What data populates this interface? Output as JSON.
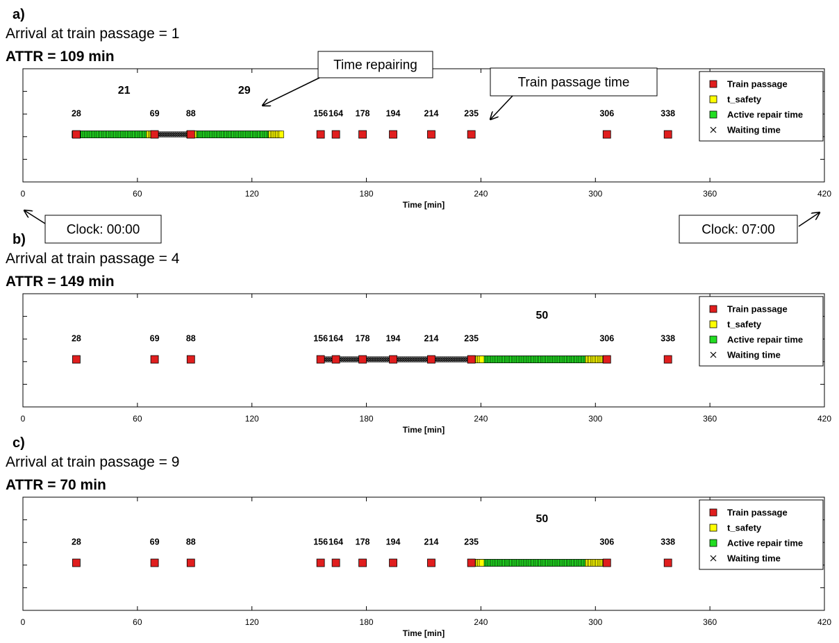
{
  "colors": {
    "train": "#e01e1e",
    "safety": "#ffff00",
    "repair": "#22dd22",
    "waiting": "#000000"
  },
  "legend": {
    "train": "Train passage",
    "safety": "t_safety",
    "repair": "Active repair time",
    "waiting": "Waiting time"
  },
  "annotations": {
    "time_repairing": "Time repairing",
    "train_passage_time": "Train passage time",
    "clock_start": "Clock: 00:00",
    "clock_end": "Clock: 07:00"
  },
  "chart_data": [
    {
      "type": "scatter",
      "panel_label": "a)",
      "subtitle": "Arrival at train passage = 1",
      "title": "ATTR = 109 min",
      "xlabel": "Time [min]",
      "xlim": [
        0,
        420
      ],
      "xticks": [
        0,
        60,
        120,
        180,
        240,
        300,
        360,
        420
      ],
      "train_passages": [
        28,
        69,
        88,
        156,
        164,
        178,
        194,
        214,
        235,
        306,
        338
      ],
      "train_labels": [
        "28",
        "69",
        "88",
        "156",
        "164",
        "178",
        "194",
        "214",
        "235",
        "306",
        "338"
      ],
      "segments": [
        {
          "kind": "safety",
          "start": 27,
          "end": 29
        },
        {
          "kind": "repair",
          "start": 29,
          "end": 66
        },
        {
          "kind": "safety",
          "start": 66,
          "end": 69
        },
        {
          "kind": "waiting",
          "start": 69,
          "end": 87
        },
        {
          "kind": "safety",
          "start": 87,
          "end": 90
        },
        {
          "kind": "repair",
          "start": 90,
          "end": 130
        },
        {
          "kind": "safety",
          "start": 130,
          "end": 136
        }
      ],
      "value_labels": [
        {
          "text": "21",
          "x": 53
        },
        {
          "text": "29",
          "x": 116
        }
      ]
    },
    {
      "type": "scatter",
      "panel_label": "b)",
      "subtitle": "Arrival at train passage = 4",
      "title": "ATTR = 149 min",
      "xlabel": "Time [min]",
      "xlim": [
        0,
        420
      ],
      "xticks": [
        0,
        60,
        120,
        180,
        240,
        300,
        360,
        420
      ],
      "train_passages": [
        28,
        69,
        88,
        156,
        164,
        178,
        194,
        214,
        235,
        306,
        338
      ],
      "train_labels": [
        "28",
        "69",
        "88",
        "156",
        "164",
        "178",
        "194",
        "214",
        "235",
        "306",
        "338"
      ],
      "segments": [
        {
          "kind": "waiting",
          "start": 156,
          "end": 235
        },
        {
          "kind": "safety",
          "start": 235,
          "end": 241
        },
        {
          "kind": "repair",
          "start": 241,
          "end": 296
        },
        {
          "kind": "safety",
          "start": 296,
          "end": 306
        }
      ],
      "value_labels": [
        {
          "text": "50",
          "x": 272
        }
      ]
    },
    {
      "type": "scatter",
      "panel_label": "c)",
      "subtitle": "Arrival at train passage = 9",
      "title": "ATTR = 70 min",
      "xlabel": "Time [min]",
      "xlim": [
        0,
        420
      ],
      "xticks": [
        0,
        60,
        120,
        180,
        240,
        300,
        360,
        420
      ],
      "train_passages": [
        28,
        69,
        88,
        156,
        164,
        178,
        194,
        214,
        235,
        306,
        338
      ],
      "train_labels": [
        "28",
        "69",
        "88",
        "156",
        "164",
        "178",
        "194",
        "214",
        "235",
        "306",
        "338"
      ],
      "segments": [
        {
          "kind": "safety",
          "start": 235,
          "end": 241
        },
        {
          "kind": "repair",
          "start": 241,
          "end": 296
        },
        {
          "kind": "safety",
          "start": 296,
          "end": 306
        }
      ],
      "value_labels": [
        {
          "text": "50",
          "x": 272
        }
      ]
    }
  ]
}
